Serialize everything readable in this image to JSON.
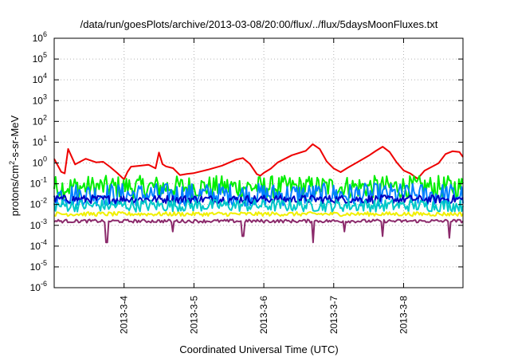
{
  "chart_data": {
    "type": "line",
    "title": "/data/run/goesPlots/archive/2013-03-08/20:00/flux/../flux/5daysMoonFluxes.txt",
    "xlabel": "Coordinated Universal Time (UTC)",
    "ylabel": {
      "pre": "protons/cm",
      "sup": "2",
      "post": "-s-sr-MeV"
    },
    "yscale": "log",
    "ylim": [
      1e-06,
      1000000.0
    ],
    "xlim": [
      3.0,
      8.85
    ],
    "grid": true,
    "x_ticks": [
      {
        "value": 4,
        "label": "2013-3-4"
      },
      {
        "value": 5,
        "label": "2013-3-5"
      },
      {
        "value": 6,
        "label": "2013-3-6"
      },
      {
        "value": 7,
        "label": "2013-3-7"
      },
      {
        "value": 8,
        "label": "2013-3-8"
      }
    ],
    "y_ticks": [
      {
        "exp": -6,
        "label": "-6"
      },
      {
        "exp": -5,
        "label": "-5"
      },
      {
        "exp": -4,
        "label": "-4"
      },
      {
        "exp": -3,
        "label": "-3"
      },
      {
        "exp": -2,
        "label": "-2"
      },
      {
        "exp": -1,
        "label": "-1"
      },
      {
        "exp": 0,
        "label": "0"
      },
      {
        "exp": 1,
        "label": "1"
      },
      {
        "exp": 2,
        "label": "2"
      },
      {
        "exp": 3,
        "label": "3"
      },
      {
        "exp": 4,
        "label": "4"
      },
      {
        "exp": 5,
        "label": "5"
      },
      {
        "exp": 6,
        "label": "6"
      }
    ],
    "series": [
      {
        "color": "#ee0000",
        "x": [
          3.0,
          3.1,
          3.15,
          3.2,
          3.3,
          3.45,
          3.6,
          3.7,
          3.8,
          3.9,
          4.0,
          4.05,
          4.1,
          4.2,
          4.35,
          4.45,
          4.5,
          4.55,
          4.6,
          4.7,
          4.8,
          4.9,
          5.0,
          5.2,
          5.4,
          5.6,
          5.7,
          5.8,
          5.9,
          5.95,
          6.0,
          6.1,
          6.2,
          6.4,
          6.6,
          6.7,
          6.8,
          6.9,
          7.0,
          7.1,
          7.2,
          7.35,
          7.5,
          7.6,
          7.7,
          7.8,
          7.9,
          8.0,
          8.1,
          8.2,
          8.3,
          8.5,
          8.6,
          8.7,
          8.8,
          8.85
        ],
        "y": [
          1.5,
          0.4,
          0.3,
          4.0,
          0.8,
          1.5,
          1.2,
          1.0,
          0.6,
          0.3,
          0.15,
          0.4,
          0.6,
          0.8,
          0.8,
          0.6,
          3.5,
          0.8,
          0.6,
          0.5,
          0.3,
          0.3,
          0.3,
          0.5,
          0.8,
          1.5,
          1.5,
          0.8,
          0.3,
          0.25,
          0.3,
          0.6,
          1.2,
          2.5,
          4.0,
          8.0,
          4.0,
          1.2,
          0.5,
          0.4,
          0.6,
          1.0,
          2.0,
          4.0,
          6.0,
          3.0,
          1.0,
          0.5,
          0.3,
          0.2,
          0.4,
          1.0,
          2.5,
          4.0,
          3.5,
          2.0
        ]
      },
      {
        "color": "#00ee00",
        "level": 0.07,
        "spread": 0.55
      },
      {
        "color": "#0080ff",
        "level": 0.03,
        "spread": 0.55
      },
      {
        "color": "#0000c0",
        "level": 0.018,
        "spread": 0.2
      },
      {
        "color": "#00c8c8",
        "level": 0.009,
        "spread": 0.3
      },
      {
        "color": "#f0f000",
        "level": 0.0035,
        "spread": 0.1
      },
      {
        "color": "#8b2a6b",
        "level": 0.0016,
        "spread": 0.08,
        "dips": [
          {
            "x": 3.75,
            "y": 0.00015
          },
          {
            "x": 4.7,
            "y": 0.0005
          },
          {
            "x": 5.7,
            "y": 0.0003
          },
          {
            "x": 6.7,
            "y": 0.00015
          },
          {
            "x": 7.15,
            "y": 0.0005
          },
          {
            "x": 7.7,
            "y": 0.0003
          },
          {
            "x": 8.65,
            "y": 0.00025
          }
        ]
      }
    ]
  }
}
